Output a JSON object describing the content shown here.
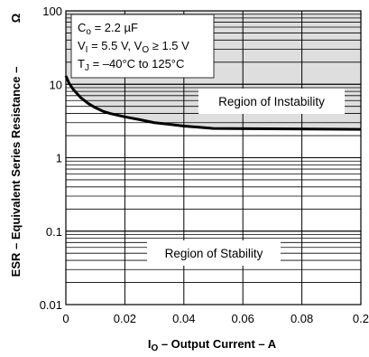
{
  "chart_data": {
    "type": "line",
    "xlabel": {
      "main": "I",
      "sub": "O",
      "rest": " – Output Current – A"
    },
    "ylabel": {
      "main": "ESR – Equivalent Series Resistance –",
      "unit": "Ω"
    },
    "xlim": [
      0,
      0.2
    ],
    "ylim": [
      0.01,
      100
    ],
    "yscale": "log",
    "x_ticks": [
      "0",
      "0.02",
      "0.04",
      "0.06",
      "0.08",
      "0.2"
    ],
    "y_ticks": [
      "0.01",
      "0.1",
      "1",
      "10",
      "100"
    ],
    "grid": true,
    "annotations": {
      "line1": {
        "a": "C",
        "sub": "o",
        "b": " = 2.2 µF"
      },
      "line2": {
        "a": "V",
        "sub1": "I",
        "b": " = 5.5 V, V",
        "sub2": "O",
        "c": " ≥ 1.5 V"
      },
      "line3": {
        "a": "T",
        "sub": "J",
        "b": " = –40°C to 125°C"
      }
    },
    "regions": {
      "instability": "Region of Instability",
      "stability": "Region of Stability"
    },
    "series": [
      {
        "x": [
          0,
          0.002,
          0.005,
          0.01,
          0.015,
          0.02,
          0.025,
          0.03,
          0.04,
          0.05,
          0.06,
          0.07,
          0.08,
          0.09,
          0.1
        ],
        "y": [
          13,
          10.5,
          8.5,
          6.6,
          5.5,
          4.8,
          4.3,
          4.0,
          3.6,
          3.3,
          3.0,
          2.85,
          2.7,
          2.6,
          2.5
        ]
      }
    ]
  }
}
